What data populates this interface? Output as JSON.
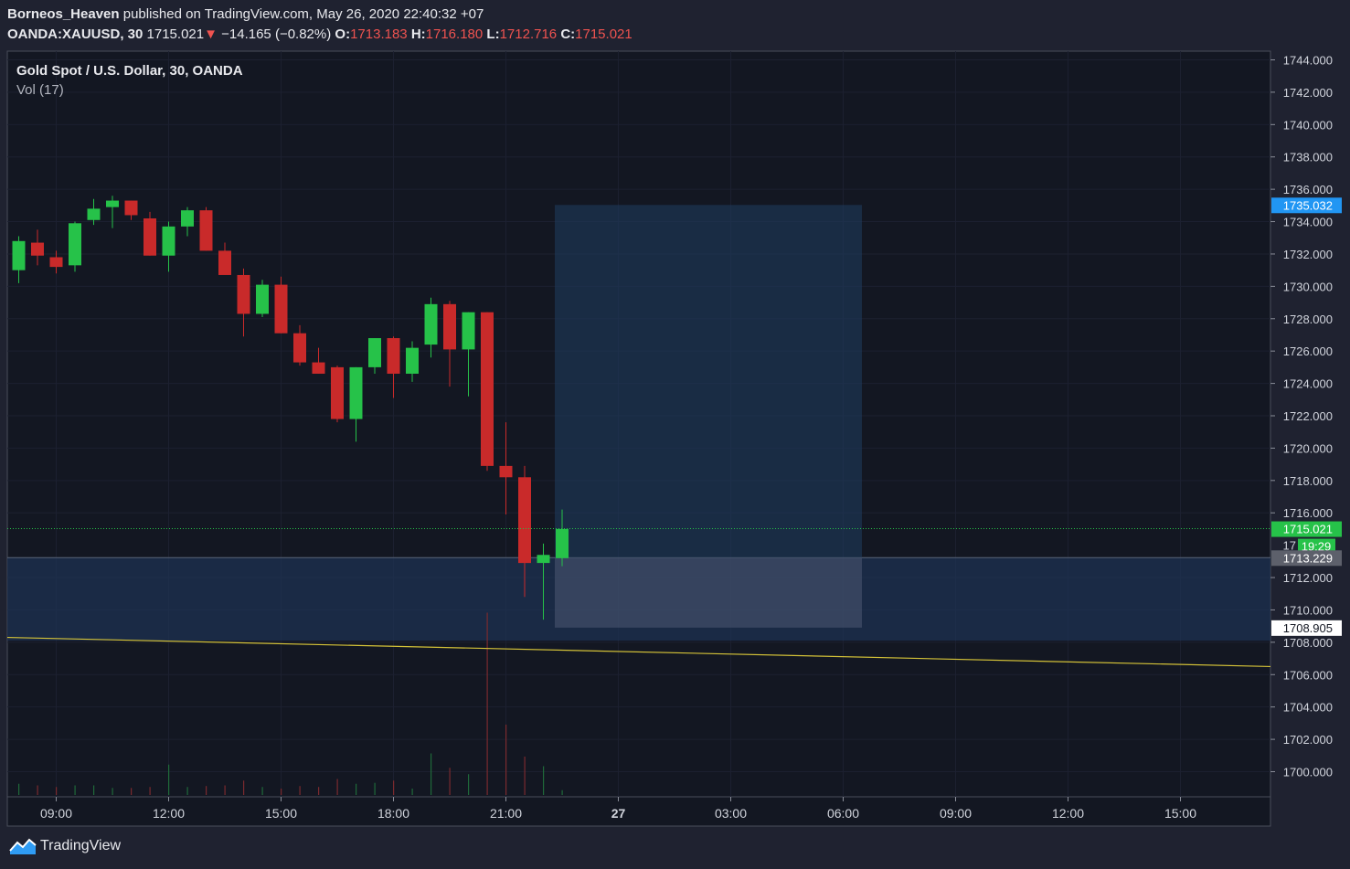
{
  "header": {
    "author": "Borneos_Heaven",
    "published": "published on TradingView.com, May 26, 2020 22:40:32 +07",
    "symbol": "OANDA:XAUUSD, 30",
    "price": "1715.021",
    "change_arrow": "▼",
    "change": "−14.165 (−0.82%)",
    "o_label": "O:",
    "o": "1713.183",
    "h_label": "H:",
    "h": "1716.180",
    "l_label": "L:",
    "l": "1712.716",
    "c_label": "C:",
    "c": "1715.021"
  },
  "legend": {
    "title": "Gold Spot / U.S. Dollar, 30, OANDA",
    "indicator": "Vol (17)"
  },
  "footer": {
    "brand": "TradingView"
  },
  "colors": {
    "background": "#131722",
    "up": "#26c249",
    "down": "#c92a2a",
    "trendline": "#d4c238",
    "zone": "#1d3252",
    "target": "#2196f3",
    "current": "#26c249"
  },
  "chart_data": {
    "type": "candlestick",
    "symbol": "XAUUSD",
    "interval": "30",
    "y_range": [
      1698.5,
      1745.0
    ],
    "y_ticks": [
      1744,
      1742,
      1740,
      1738,
      1736,
      1734,
      1732,
      1730,
      1728,
      1726,
      1724,
      1722,
      1720,
      1718,
      1716,
      1712,
      1710,
      1708,
      1706,
      1704,
      1702,
      1700
    ],
    "x_ticks": [
      "09:00",
      "12:00",
      "15:00",
      "18:00",
      "21:00",
      "27",
      "03:00",
      "06:00",
      "09:00",
      "12:00",
      "15:00"
    ],
    "candles": [
      {
        "time": "08:00",
        "o": 1731.0,
        "h": 1733.1,
        "l": 1730.2,
        "c": 1732.8
      },
      {
        "time": "08:30",
        "o": 1732.7,
        "h": 1733.5,
        "l": 1731.3,
        "c": 1731.9
      },
      {
        "time": "09:00",
        "o": 1731.8,
        "h": 1732.2,
        "l": 1730.8,
        "c": 1731.2
      },
      {
        "time": "09:30",
        "o": 1731.3,
        "h": 1734.0,
        "l": 1730.9,
        "c": 1733.9
      },
      {
        "time": "10:00",
        "o": 1734.1,
        "h": 1735.4,
        "l": 1733.8,
        "c": 1734.8
      },
      {
        "time": "10:30",
        "o": 1734.9,
        "h": 1735.6,
        "l": 1733.6,
        "c": 1735.3
      },
      {
        "time": "11:00",
        "o": 1735.3,
        "h": 1735.3,
        "l": 1734.1,
        "c": 1734.4
      },
      {
        "time": "11:30",
        "o": 1734.2,
        "h": 1734.6,
        "l": 1731.9,
        "c": 1731.9
      },
      {
        "time": "12:00",
        "o": 1731.9,
        "h": 1734.0,
        "l": 1730.9,
        "c": 1733.7
      },
      {
        "time": "12:30",
        "o": 1733.7,
        "h": 1734.9,
        "l": 1733.1,
        "c": 1734.7
      },
      {
        "time": "13:00",
        "o": 1734.7,
        "h": 1734.9,
        "l": 1732.2,
        "c": 1732.2
      },
      {
        "time": "13:30",
        "o": 1732.2,
        "h": 1732.7,
        "l": 1730.7,
        "c": 1730.7
      },
      {
        "time": "14:00",
        "o": 1730.7,
        "h": 1731.1,
        "l": 1726.9,
        "c": 1728.3
      },
      {
        "time": "14:30",
        "o": 1728.3,
        "h": 1730.4,
        "l": 1728.1,
        "c": 1730.1
      },
      {
        "time": "15:00",
        "o": 1730.1,
        "h": 1730.6,
        "l": 1727.1,
        "c": 1727.1
      },
      {
        "time": "15:30",
        "o": 1727.1,
        "h": 1727.6,
        "l": 1725.1,
        "c": 1725.3
      },
      {
        "time": "16:00",
        "o": 1725.3,
        "h": 1726.2,
        "l": 1724.6,
        "c": 1724.6
      },
      {
        "time": "16:30",
        "o": 1725.0,
        "h": 1725.1,
        "l": 1721.6,
        "c": 1721.8
      },
      {
        "time": "17:00",
        "o": 1721.8,
        "h": 1725.0,
        "l": 1720.4,
        "c": 1725.0
      },
      {
        "time": "17:30",
        "o": 1725.0,
        "h": 1726.8,
        "l": 1724.6,
        "c": 1726.8
      },
      {
        "time": "18:00",
        "o": 1726.8,
        "h": 1726.9,
        "l": 1723.1,
        "c": 1724.6
      },
      {
        "time": "18:30",
        "o": 1724.6,
        "h": 1726.6,
        "l": 1724.1,
        "c": 1726.2
      },
      {
        "time": "19:00",
        "o": 1726.4,
        "h": 1729.3,
        "l": 1725.6,
        "c": 1728.9
      },
      {
        "time": "19:30",
        "o": 1728.9,
        "h": 1729.1,
        "l": 1723.8,
        "c": 1726.1
      },
      {
        "time": "20:00",
        "o": 1726.1,
        "h": 1728.4,
        "l": 1723.2,
        "c": 1728.4
      },
      {
        "time": "20:30",
        "o": 1728.4,
        "h": 1728.4,
        "l": 1718.6,
        "c": 1718.9
      },
      {
        "time": "21:00",
        "o": 1718.9,
        "h": 1721.6,
        "l": 1715.9,
        "c": 1718.2
      },
      {
        "time": "21:30",
        "o": 1718.2,
        "h": 1718.9,
        "l": 1710.8,
        "c": 1712.9
      },
      {
        "time": "22:00",
        "o": 1712.9,
        "h": 1714.1,
        "l": 1709.4,
        "c": 1713.4
      },
      {
        "time": "22:30",
        "o": 1713.2,
        "h": 1716.2,
        "l": 1712.7,
        "c": 1715.0
      }
    ],
    "volume": [
      {
        "v": 0.35,
        "up": true
      },
      {
        "v": 0.3,
        "up": false
      },
      {
        "v": 0.25,
        "up": false
      },
      {
        "v": 0.3,
        "up": true
      },
      {
        "v": 0.3,
        "up": true
      },
      {
        "v": 0.22,
        "up": true
      },
      {
        "v": 0.22,
        "up": false
      },
      {
        "v": 0.25,
        "up": false
      },
      {
        "v": 0.95,
        "up": true
      },
      {
        "v": 0.25,
        "up": true
      },
      {
        "v": 0.28,
        "up": false
      },
      {
        "v": 0.3,
        "up": false
      },
      {
        "v": 0.45,
        "up": false
      },
      {
        "v": 0.25,
        "up": true
      },
      {
        "v": 0.2,
        "up": false
      },
      {
        "v": 0.28,
        "up": false
      },
      {
        "v": 0.25,
        "up": false
      },
      {
        "v": 0.5,
        "up": false
      },
      {
        "v": 0.35,
        "up": true
      },
      {
        "v": 0.38,
        "up": true
      },
      {
        "v": 0.45,
        "up": false
      },
      {
        "v": 0.2,
        "up": true
      },
      {
        "v": 1.3,
        "up": true
      },
      {
        "v": 0.85,
        "up": false
      },
      {
        "v": 0.65,
        "up": true
      },
      {
        "v": 5.7,
        "up": false
      },
      {
        "v": 2.2,
        "up": false
      },
      {
        "v": 1.2,
        "up": false
      },
      {
        "v": 0.9,
        "up": true
      },
      {
        "v": 0.15,
        "up": true
      }
    ],
    "support_zone": {
      "top": 1713.229,
      "bottom": 1708.1
    },
    "position_box": {
      "start": "22:30",
      "end": "06:30",
      "target": 1735.032,
      "entry": 1713.229,
      "stop": 1708.905
    },
    "trendline": {
      "start": {
        "time": "07:45",
        "price": 1708.3
      },
      "end": {
        "time": "16:00 (27)",
        "price": 1706.5
      }
    },
    "current_price": 1715.021,
    "countdown": "19:29",
    "price_labels": {
      "target": "1735.032",
      "current": "1715.021",
      "entry": "1713.229",
      "stop": "1708.905"
    }
  }
}
